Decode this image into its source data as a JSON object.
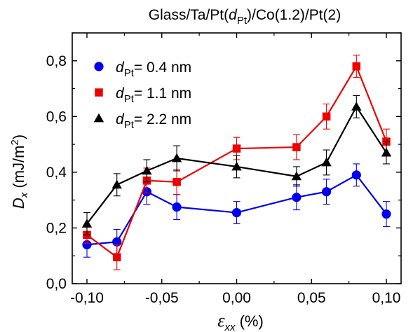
{
  "chart_data": {
    "type": "line",
    "title_parts": {
      "prefix": "Glass/Ta/Pt(",
      "var": "d",
      "sub": "Pt",
      "suffix": ")/Co(1.2)/Pt(2)"
    },
    "xlabel_parts": {
      "var": "ε",
      "sub": "xx",
      "unit": " (%)"
    },
    "ylabel_parts": {
      "var": "D",
      "sub": "x",
      "unit": " (mJ/m",
      "sup": "2",
      "close": ")"
    },
    "xlim": [
      -0.1,
      0.1
    ],
    "ylim": [
      0.0,
      0.9
    ],
    "xticks": [
      -0.1,
      -0.05,
      0.0,
      0.05,
      0.1
    ],
    "xtick_labels": [
      "-0,10",
      "-0,05",
      "0,00",
      "0,05",
      "0,10"
    ],
    "yticks": [
      0.0,
      0.2,
      0.4,
      0.6,
      0.8
    ],
    "ytick_labels": [
      "0,0",
      "0,2",
      "0,4",
      "0,6",
      "0,8"
    ],
    "grid": false,
    "legend_placement": "top-left",
    "series": [
      {
        "legend_var": "d",
        "legend_sub": "Pt",
        "legend_value": "= 0.4 nm",
        "color": "#0000ee",
        "marker": "circle",
        "x": [
          -0.1,
          -0.08,
          -0.06,
          -0.04,
          0.0,
          0.04,
          0.06,
          0.08,
          0.1
        ],
        "y": [
          0.14,
          0.15,
          0.33,
          0.275,
          0.255,
          0.31,
          0.33,
          0.39,
          0.25
        ],
        "err": [
          0.045,
          0.045,
          0.045,
          0.045,
          0.04,
          0.045,
          0.045,
          0.04,
          0.045
        ]
      },
      {
        "legend_var": "d",
        "legend_sub": "Pt",
        "legend_value": "= 1.1 nm",
        "color": "#ee0000",
        "marker": "square",
        "x": [
          -0.1,
          -0.08,
          -0.06,
          -0.04,
          0.0,
          0.04,
          0.06,
          0.08,
          0.1
        ],
        "y": [
          0.175,
          0.095,
          0.37,
          0.365,
          0.485,
          0.49,
          0.6,
          0.78,
          0.51
        ],
        "err": [
          0.03,
          0.045,
          0.045,
          0.045,
          0.04,
          0.045,
          0.045,
          0.04,
          0.045
        ]
      },
      {
        "legend_var": "d",
        "legend_sub": "Pt",
        "legend_value": "= 2.2 nm",
        "color": "#000000",
        "marker": "triangle",
        "x": [
          -0.1,
          -0.08,
          -0.06,
          -0.04,
          0.0,
          0.04,
          0.06,
          0.08,
          0.1
        ],
        "y": [
          0.215,
          0.355,
          0.405,
          0.45,
          0.42,
          0.385,
          0.435,
          0.635,
          0.47
        ],
        "err": [
          0.04,
          0.04,
          0.04,
          0.045,
          0.04,
          0.035,
          0.045,
          0.04,
          0.04
        ]
      }
    ]
  }
}
